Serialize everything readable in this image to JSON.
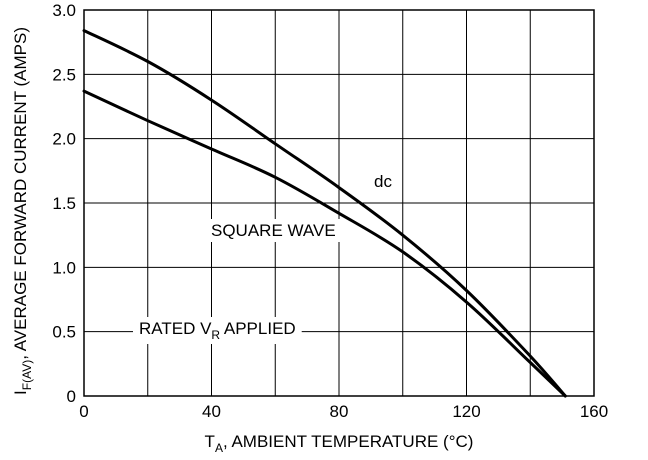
{
  "chart_data": {
    "type": "line",
    "xlabel": {
      "main": "T",
      "sub": "A",
      "rest": ", AMBIENT TEMPERATURE (°C)"
    },
    "ylabel": {
      "main": "I",
      "sub": "F(AV)",
      "rest": ", AVERAGE FORWARD CURRENT (AMPS)"
    },
    "xlim": [
      0,
      160
    ],
    "ylim": [
      0,
      3.0
    ],
    "x_ticks": [
      0,
      40,
      80,
      120,
      160
    ],
    "x_tick_labels": [
      "0",
      "40",
      "80",
      "120",
      "160"
    ],
    "y_ticks": [
      0,
      0.5,
      1.0,
      1.5,
      2.0,
      2.5,
      3.0
    ],
    "y_tick_labels": [
      "0",
      "0.5",
      "1.0",
      "1.5",
      "2.0",
      "2.5",
      "3.0"
    ],
    "x_grid": [
      20,
      40,
      60,
      80,
      100,
      120,
      140
    ],
    "y_grid": [
      0.5,
      1.0,
      1.5,
      2.0,
      2.5
    ],
    "grid": true,
    "series": [
      {
        "name": "dc",
        "x": [
          0,
          20,
          40,
          60,
          80,
          100,
          120,
          140,
          151
        ],
        "y": [
          2.84,
          2.6,
          2.3,
          1.96,
          1.62,
          1.25,
          0.82,
          0.31,
          0
        ]
      },
      {
        "name": "SQUARE WAVE",
        "x": [
          0,
          20,
          40,
          60,
          80,
          100,
          120,
          140,
          151
        ],
        "y": [
          2.37,
          2.14,
          1.92,
          1.7,
          1.42,
          1.12,
          0.73,
          0.26,
          0
        ]
      }
    ],
    "annotations": {
      "dc": "dc",
      "square_wave": "SQUARE WAVE",
      "rated_main": "RATED V",
      "rated_sub": "R",
      "rated_rest": " APPLIED"
    }
  }
}
